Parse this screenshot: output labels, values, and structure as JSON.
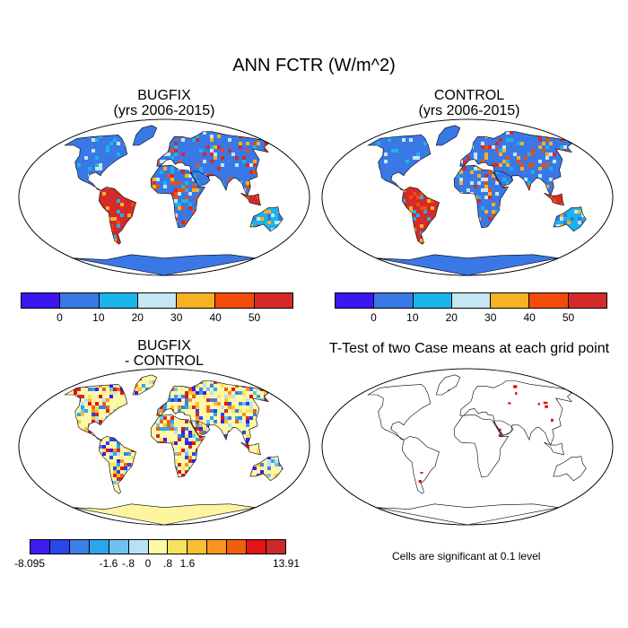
{
  "main_title": "ANN FCTR (W/m^2)",
  "panels": {
    "top_left": {
      "title": "BUGFIX",
      "subtitle": "(yrs 2006-2015)"
    },
    "top_right": {
      "title": "CONTROL",
      "subtitle": "(yrs 2006-2015)"
    },
    "bottom_left": {
      "title": "BUGFIX",
      "subtitle": "- CONTROL"
    },
    "bottom_right": {
      "title": "T-Test of two Case means at each grid point",
      "note": "Cells are significant at 0.1 level"
    }
  },
  "colorbar_main": {
    "colors": [
      "#3b16ee",
      "#3a78e6",
      "#1bb4ea",
      "#c6e6f2",
      "#f7b224",
      "#f24b0a",
      "#d52a2a"
    ],
    "labels": [
      "0",
      "10",
      "20",
      "30",
      "40",
      "50"
    ]
  },
  "colorbar_diff": {
    "colors": [
      "#3c1bf0",
      "#2a45e8",
      "#3b7fe6",
      "#2aa7ea",
      "#6fc2f0",
      "#b7e2f5",
      "#fdf7a8",
      "#f9e25c",
      "#f9c035",
      "#f8951e",
      "#f05f0d",
      "#e31414",
      "#cc2a2a"
    ],
    "labels": [
      "-8.095",
      "-1.6",
      "-.8",
      "0",
      ".8",
      "1.6",
      "13.91"
    ]
  },
  "colors": {
    "ocean": "#ffffff",
    "antarctica_abs": "#3a78e6",
    "antarctica_diff": "#fdf5a0",
    "significant": "#e00000"
  }
}
